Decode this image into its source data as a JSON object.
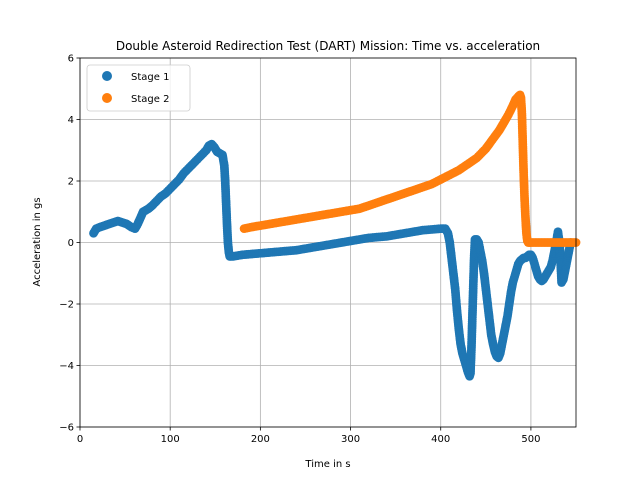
{
  "chart_data": {
    "type": "scatter",
    "title": "Double Asteroid Redirection Test (DART) Mission: Time vs. acceleration",
    "xlabel": "Time in s",
    "ylabel": "Acceleration in gs",
    "xlim": [
      0,
      550
    ],
    "ylim": [
      -6,
      6
    ],
    "xticks": [
      0,
      100,
      200,
      300,
      400,
      500
    ],
    "yticks": [
      -6,
      -4,
      -2,
      0,
      2,
      4,
      6
    ],
    "grid": true,
    "legend_position": "top-left",
    "series": [
      {
        "name": "Stage 1",
        "color": "#1f77b4",
        "x": [
          15,
          18,
          22,
          27,
          32,
          37,
          42,
          47,
          52,
          57,
          61,
          64,
          67,
          70,
          73,
          76,
          80,
          85,
          90,
          95,
          100,
          105,
          110,
          115,
          120,
          125,
          130,
          135,
          140,
          143,
          146,
          149,
          152,
          155,
          158,
          160,
          161,
          162,
          163,
          164,
          165,
          166,
          167,
          170,
          180,
          200,
          220,
          240,
          260,
          280,
          300,
          320,
          340,
          360,
          380,
          400,
          405,
          408,
          410,
          412,
          414,
          416,
          418,
          420,
          422,
          424,
          426,
          428,
          430,
          432,
          433,
          434,
          435,
          436,
          437,
          438,
          440,
          442,
          444,
          446,
          448,
          450,
          452,
          454,
          456,
          458,
          460,
          462,
          464,
          466,
          468,
          470,
          472,
          474,
          476,
          478,
          480,
          482,
          484,
          486,
          488,
          490,
          492,
          494,
          496,
          498,
          500,
          502,
          504,
          506,
          508,
          510,
          512,
          514,
          516,
          518,
          520,
          522,
          524,
          526,
          528,
          530,
          532,
          534,
          536,
          538,
          540,
          542,
          544
        ],
        "y": [
          0.3,
          0.45,
          0.5,
          0.55,
          0.6,
          0.65,
          0.7,
          0.65,
          0.6,
          0.5,
          0.45,
          0.6,
          0.8,
          1.0,
          1.05,
          1.1,
          1.2,
          1.35,
          1.5,
          1.6,
          1.75,
          1.9,
          2.05,
          2.25,
          2.4,
          2.55,
          2.7,
          2.85,
          3.0,
          3.15,
          3.2,
          3.1,
          2.95,
          2.9,
          2.85,
          2.5,
          2.0,
          1.3,
          0.6,
          0.0,
          -0.3,
          -0.45,
          -0.45,
          -0.45,
          -0.4,
          -0.35,
          -0.3,
          -0.25,
          -0.15,
          -0.05,
          0.05,
          0.15,
          0.2,
          0.3,
          0.4,
          0.45,
          0.45,
          0.3,
          0.0,
          -0.5,
          -1.0,
          -1.5,
          -2.2,
          -2.8,
          -3.3,
          -3.6,
          -3.8,
          -4.0,
          -4.2,
          -4.35,
          -4.25,
          -3.5,
          -2.5,
          -1.5,
          -0.5,
          0.1,
          0.1,
          0.0,
          -0.3,
          -0.6,
          -1.0,
          -1.5,
          -2.0,
          -2.5,
          -3.0,
          -3.3,
          -3.55,
          -3.7,
          -3.75,
          -3.6,
          -3.3,
          -3.0,
          -2.7,
          -2.4,
          -2.0,
          -1.6,
          -1.3,
          -1.1,
          -0.9,
          -0.7,
          -0.6,
          -0.55,
          -0.5,
          -0.5,
          -0.45,
          -0.4,
          -0.4,
          -0.5,
          -0.7,
          -0.9,
          -1.1,
          -1.2,
          -1.25,
          -1.2,
          -1.1,
          -1.0,
          -0.9,
          -0.8,
          -0.6,
          -0.3,
          0.0,
          0.35,
          -0.1,
          -1.3,
          -1.2,
          -0.9,
          -0.6,
          -0.3,
          0.0
        ]
      },
      {
        "name": "Stage 2",
        "color": "#ff7f0e",
        "x": [
          182,
          190,
          200,
          210,
          220,
          230,
          240,
          250,
          260,
          270,
          280,
          290,
          300,
          310,
          320,
          330,
          340,
          350,
          360,
          370,
          380,
          390,
          400,
          410,
          420,
          430,
          440,
          445,
          450,
          455,
          460,
          465,
          470,
          475,
          480,
          483,
          486,
          488,
          489,
          490,
          491,
          492,
          493,
          494,
          495,
          496,
          497,
          498,
          499,
          500,
          505,
          510,
          515,
          520,
          525,
          530,
          535,
          540,
          545,
          550
        ],
        "y": [
          0.45,
          0.5,
          0.55,
          0.6,
          0.65,
          0.7,
          0.75,
          0.8,
          0.85,
          0.9,
          0.95,
          1.0,
          1.05,
          1.1,
          1.2,
          1.3,
          1.4,
          1.5,
          1.6,
          1.7,
          1.8,
          1.9,
          2.05,
          2.2,
          2.35,
          2.55,
          2.75,
          2.9,
          3.05,
          3.25,
          3.45,
          3.65,
          3.9,
          4.15,
          4.45,
          4.65,
          4.75,
          4.8,
          4.7,
          4.2,
          3.2,
          2.2,
          1.4,
          0.8,
          0.3,
          0.05,
          0.0,
          0.0,
          0.0,
          0.0,
          0.0,
          0.0,
          0.0,
          0.0,
          0.0,
          0.0,
          0.0,
          0.0,
          0.0,
          0.0
        ]
      }
    ]
  }
}
